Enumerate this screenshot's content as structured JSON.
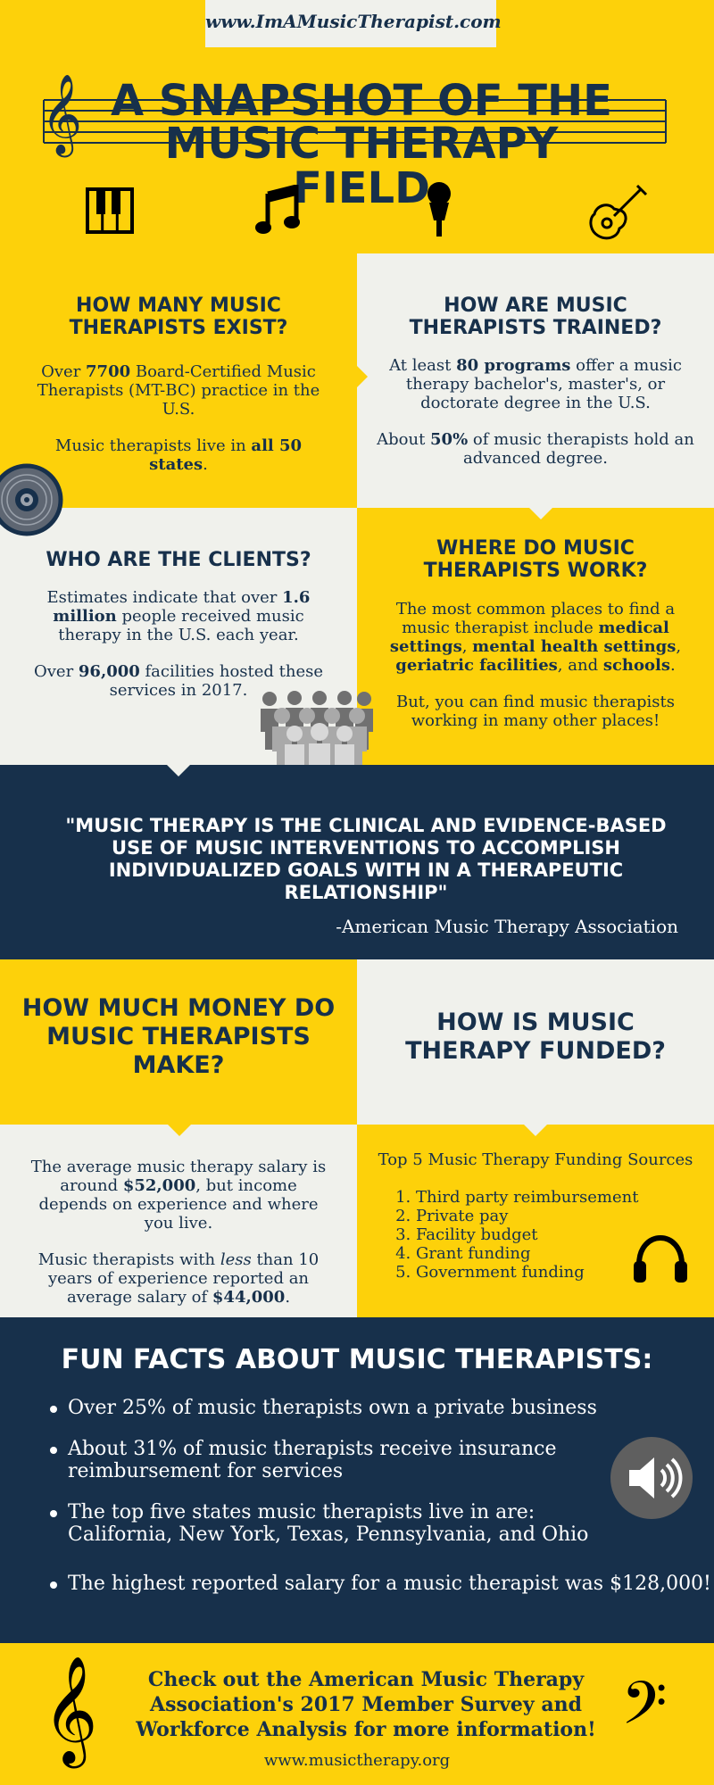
{
  "header": {
    "url": "www.ImAMusicTherapist.com"
  },
  "title": {
    "line1": "A SNAPSHOT OF THE",
    "line2": "MUSIC THERAPY FIELD"
  },
  "icons_row": [
    "piano-keys-icon",
    "music-note-icon",
    "microphone-icon",
    "guitar-icon"
  ],
  "exist": {
    "heading": "HOW MANY MUSIC THERAPISTS EXIST?",
    "p1_a": "Over ",
    "p1_b": "7700",
    "p1_c": " Board-Certified Music Therapists (MT-BC) practice in the U.S.",
    "p2_a": "Music therapists live in ",
    "p2_b": "all 50 states",
    "p2_c": "."
  },
  "trained": {
    "heading": "HOW ARE MUSIC THERAPISTS TRAINED?",
    "p1_a": "At least ",
    "p1_b": "80 programs",
    "p1_c": " offer a music therapy bachelor's, master's, or doctorate degree in the U.S.",
    "p2_a": "About ",
    "p2_b": "50%",
    "p2_c": " of music therapists hold an advanced degree."
  },
  "clients": {
    "heading": "WHO ARE THE CLIENTS?",
    "p1_a": "Estimates indicate that over ",
    "p1_b": "1.6 million",
    "p1_c": " people received music therapy in the U.S. each year.",
    "p2_a": "Over ",
    "p2_b": "96,000",
    "p2_c": " facilities hosted these services in 2017."
  },
  "work": {
    "heading": "WHERE DO MUSIC THERAPISTS WORK?",
    "p1_a": "The most common places to find a music therapist include ",
    "p1_b": "medical settings",
    "p1_c": ", ",
    "p1_d": "mental health settings",
    "p1_e": ", ",
    "p1_f": "geriatric facilities",
    "p1_g": ", and ",
    "p1_h": "schools",
    "p1_i": ".",
    "p2": "But, you can find music therapists working in many other places!"
  },
  "quote": {
    "text": "\"MUSIC THERAPY IS THE CLINICAL AND EVIDENCE-BASED USE OF MUSIC INTERVENTIONS TO ACCOMPLISH INDIVIDUALIZED GOALS WITH IN A THERAPEUTIC RELATIONSHIP\"",
    "attribution": "-American Music Therapy Association"
  },
  "money": {
    "heading": "HOW MUCH MONEY DO MUSIC THERAPISTS MAKE?",
    "p1_a": "The average music therapy salary is around ",
    "p1_b": "$52,000",
    "p1_c": ", but income depends on experience and where you live.",
    "p2_a": "Music therapists with ",
    "p2_b": "less",
    "p2_c": " than 10 years of experience reported an average salary of ",
    "p2_d": "$44,000",
    "p2_e": "."
  },
  "funded": {
    "heading": "HOW IS MUSIC THERAPY FUNDED?",
    "list_title": "Top 5 Music Therapy Funding Sources",
    "sources": [
      "Third party reimbursement",
      "Private pay",
      "Facility budget",
      "Grant funding",
      "Government funding"
    ]
  },
  "fun_facts": {
    "heading": "FUN FACTS ABOUT MUSIC THERAPISTS:",
    "items": [
      "Over 25% of music therapists own a private business",
      "About 31% of music therapists receive insurance reimbursement for services",
      "The top five states music therapists live in are: California, New York, Texas, Pennsylvania, and Ohio",
      "The highest reported salary for a music therapist was $128,000!"
    ]
  },
  "footer": {
    "cta": "Check out the American Music Therapy Association's 2017 Member Survey and Workforce Analysis for more information!",
    "url": "www.musictherapy.org"
  },
  "colors": {
    "yellow": "#fdd10a",
    "navy": "#17304b",
    "light": "#f0f1ec",
    "gray": "#5f5f5f"
  }
}
